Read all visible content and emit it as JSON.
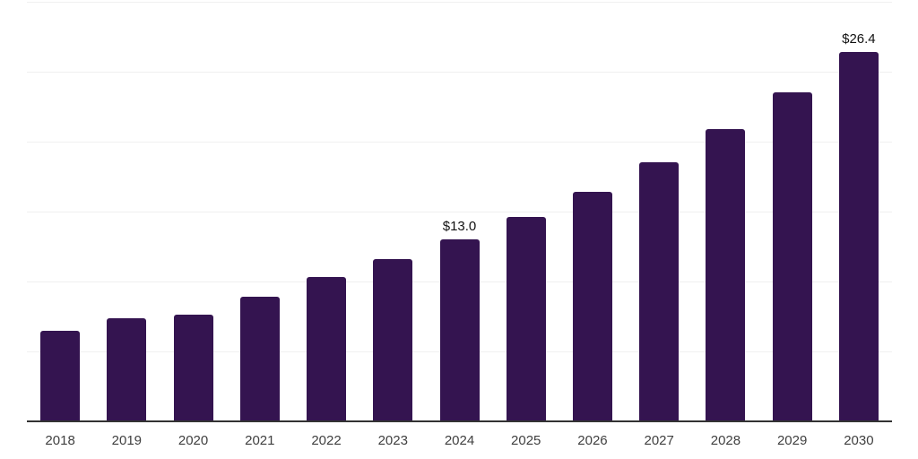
{
  "chart_data": {
    "type": "bar",
    "title": "",
    "xlabel": "",
    "ylabel": "",
    "categories": [
      "2018",
      "2019",
      "2020",
      "2021",
      "2022",
      "2023",
      "2024",
      "2025",
      "2026",
      "2027",
      "2028",
      "2029",
      "2030"
    ],
    "values": [
      6.5,
      7.4,
      7.6,
      8.9,
      10.3,
      11.6,
      13.0,
      14.6,
      16.4,
      18.5,
      20.9,
      23.5,
      26.4
    ],
    "data_labels": [
      {
        "category": "2024",
        "text": "$13.0"
      },
      {
        "category": "2030",
        "text": "$26.4"
      }
    ],
    "ylim": [
      0,
      30
    ],
    "gridline_step": 5,
    "grid": true,
    "legend": "none",
    "y_axis_tick_labels": "hidden",
    "colors": {
      "bar": "#341450",
      "gridline": "#f0f0f0",
      "axis_line": "#333333",
      "tick_label": "#404040",
      "data_label": "#111111",
      "background": "#ffffff"
    }
  }
}
